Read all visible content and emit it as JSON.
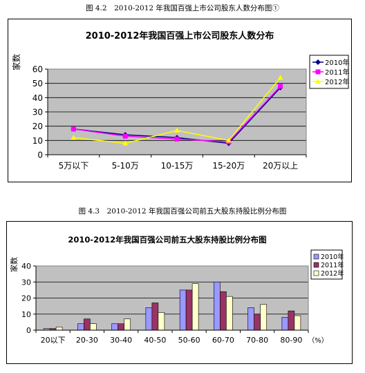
{
  "captions": {
    "fig1": "图 4.2　2010-2012 年我国百强上市公司股东人数分布图①",
    "fig2": "图 4.3　2010-2012 年我国百强公司前五大股东持股比例分布图"
  },
  "chart_data": [
    {
      "type": "line",
      "title": "2010-2012年我国百强上市公司股东人数分布",
      "ylabel": "家数",
      "xlabel": "",
      "categories": [
        "5万以下",
        "5-10万",
        "10-15万",
        "15-20万",
        "20万以上"
      ],
      "ylim": [
        0,
        60
      ],
      "yticks": [
        0,
        10,
        20,
        30,
        40,
        50,
        60
      ],
      "grid": true,
      "legend": "right",
      "plot_bg": "#c0c0c0",
      "series": [
        {
          "name": "2010年",
          "color": "#000080",
          "marker": "diamond",
          "values": [
            18,
            14,
            12,
            8,
            47
          ]
        },
        {
          "name": "2011年",
          "color": "#ff00ff",
          "marker": "square",
          "values": [
            18,
            13,
            11,
            9,
            48
          ]
        },
        {
          "name": "2012年",
          "color": "#ffff00",
          "marker": "triangle",
          "values": [
            12,
            8,
            17,
            10,
            54
          ]
        }
      ]
    },
    {
      "type": "bar",
      "title": "2010-2012年我国百强公司前五大股东持股比例分布图",
      "ylabel": "家数",
      "xlabel": "（%）",
      "categories": [
        "20以下",
        "20-30",
        "30-40",
        "40-50",
        "50-60",
        "60-70",
        "70-80",
        "80-90"
      ],
      "ylim": [
        0,
        40
      ],
      "yticks": [
        0,
        10,
        20,
        30,
        40
      ],
      "grid": true,
      "legend": "right",
      "plot_bg": "#c0c0c0",
      "series": [
        {
          "name": "2010年",
          "color": "#9999ff",
          "values": [
            1,
            4,
            4,
            14,
            25,
            30,
            14,
            8
          ]
        },
        {
          "name": "2011年",
          "color": "#993366",
          "values": [
            1,
            7,
            4,
            17,
            25,
            24,
            10,
            12
          ]
        },
        {
          "name": "2012年",
          "color": "#ffffcc",
          "values": [
            2,
            4,
            7,
            11,
            29,
            21,
            16,
            9
          ]
        }
      ]
    }
  ]
}
